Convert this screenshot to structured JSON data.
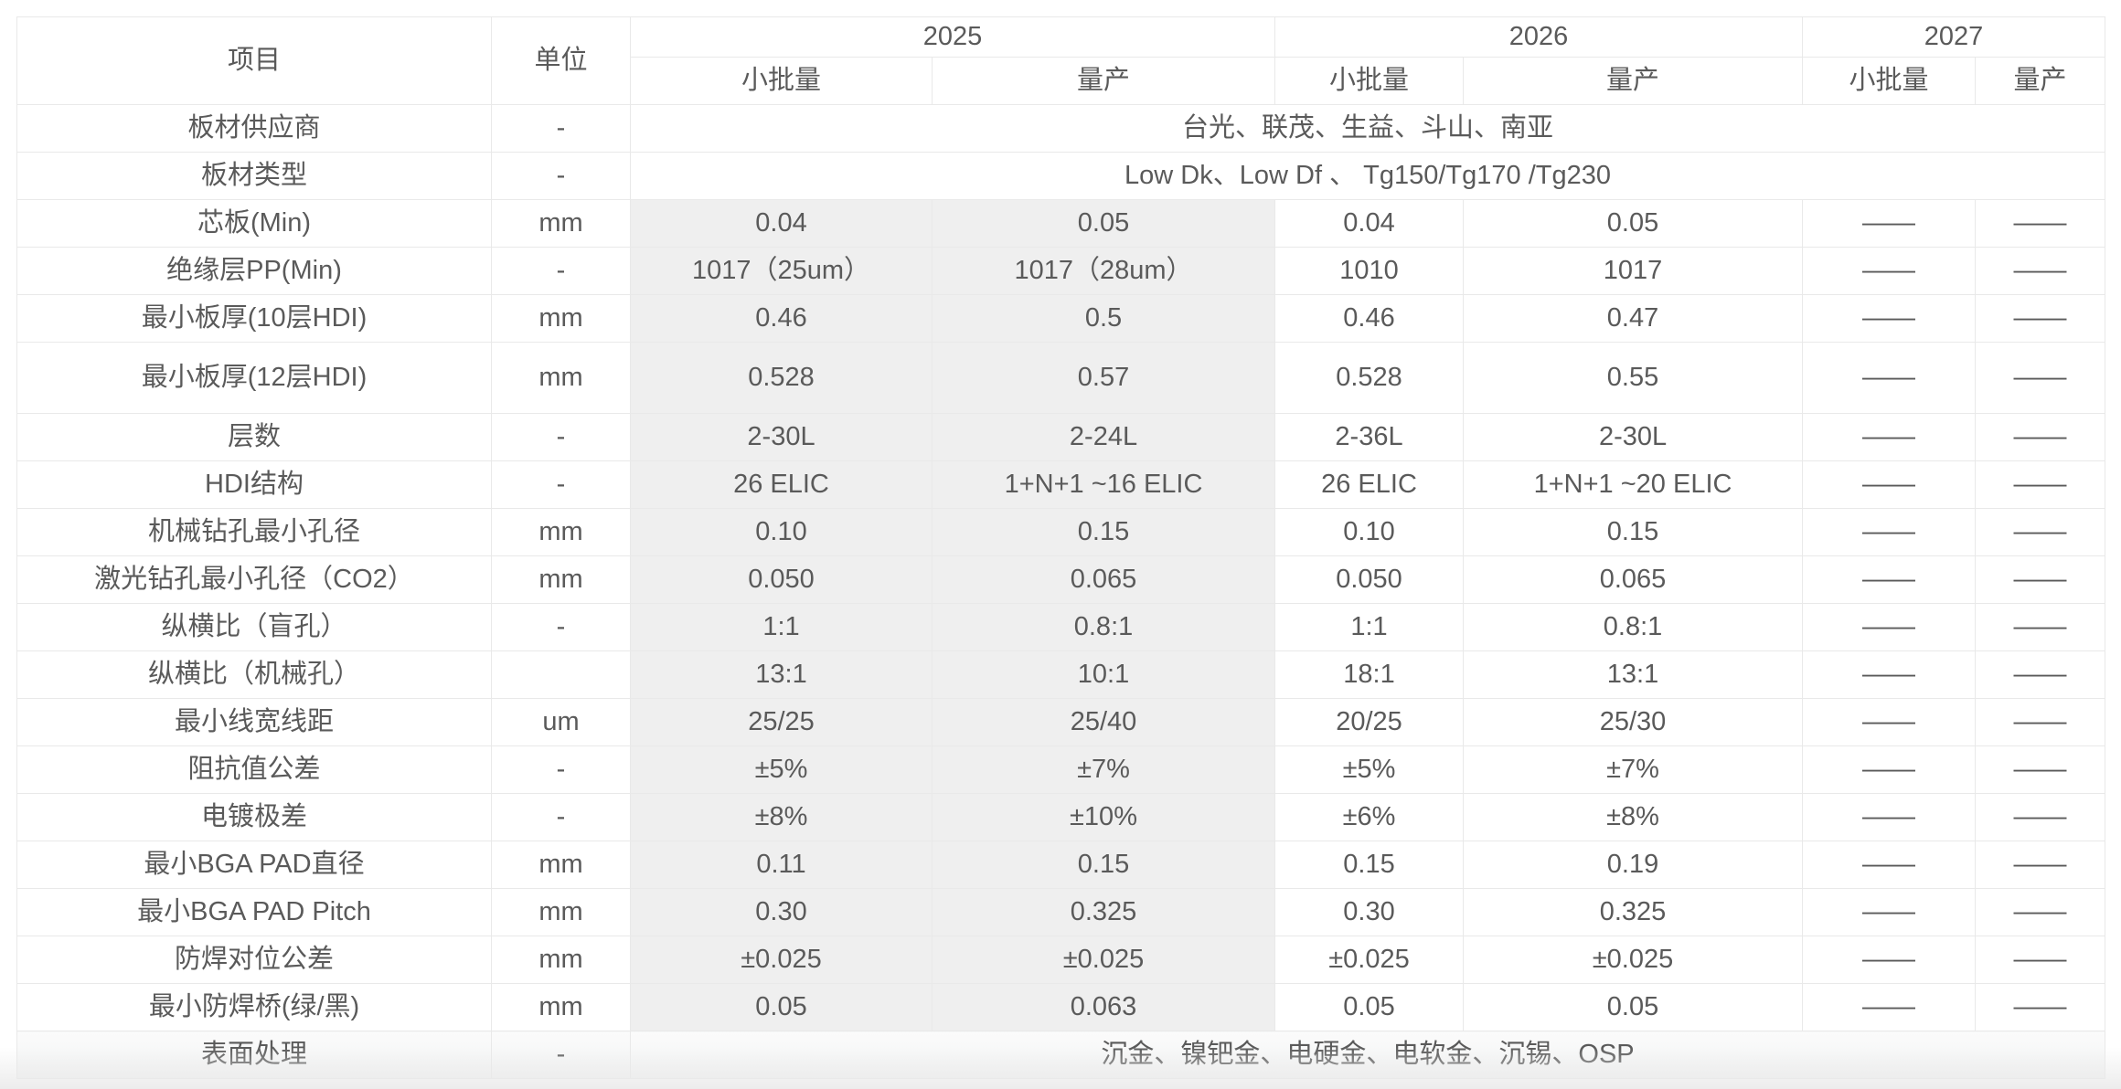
{
  "table": {
    "header": {
      "item": "项目",
      "unit": "单位",
      "years": [
        "2025",
        "2026",
        "2027"
      ],
      "subcolumns": [
        "小批量",
        "量产",
        "小批量",
        "量产",
        "小批量",
        "量产"
      ]
    },
    "rows": [
      {
        "label": "板材供应商",
        "unit": "-",
        "span": "台光、联茂、生益、斗山、南亚"
      },
      {
        "label": "板材类型",
        "unit": "-",
        "span": "Low Dk、Low Df 、 Tg150/Tg170 /Tg230"
      },
      {
        "label": "芯板(Min)",
        "unit": "mm",
        "values": [
          "0.04",
          "0.05",
          "0.04",
          "0.05",
          "——",
          "——"
        ]
      },
      {
        "label": "绝缘层PP(Min)",
        "unit": "-",
        "values": [
          "1017（25um）",
          "1017（28um）",
          "1010",
          "1017",
          "——",
          "——"
        ]
      },
      {
        "label": "最小板厚(10层HDI)",
        "unit": "mm",
        "values": [
          "0.46",
          "0.5",
          "0.46",
          "0.47",
          "——",
          "——"
        ]
      },
      {
        "label": "最小板厚(12层HDI)",
        "unit": "mm",
        "tall": true,
        "values": [
          "0.528",
          "0.57",
          "0.528",
          "0.55",
          "——",
          "——"
        ]
      },
      {
        "label": "层数",
        "unit": "-",
        "values": [
          "2-30L",
          "2-24L",
          "2-36L",
          "2-30L",
          "——",
          "——"
        ]
      },
      {
        "label": "HDI结构",
        "unit": "-",
        "values": [
          "26 ELIC",
          "1+N+1 ~16 ELIC",
          "26 ELIC",
          "1+N+1 ~20 ELIC",
          "——",
          "——"
        ]
      },
      {
        "label": "机械钻孔最小孔径",
        "unit": "mm",
        "values": [
          "0.10",
          "0.15",
          "0.10",
          "0.15",
          "——",
          "——"
        ]
      },
      {
        "label": "激光钻孔最小孔径（CO2）",
        "unit": "mm",
        "values": [
          "0.050",
          "0.065",
          "0.050",
          "0.065",
          "——",
          "——"
        ]
      },
      {
        "label": "纵横比（盲孔）",
        "unit": "-",
        "values": [
          "1:1",
          "0.8:1",
          "1:1",
          "0.8:1",
          "——",
          "——"
        ]
      },
      {
        "label": "纵横比（机械孔）",
        "unit": "",
        "values": [
          "13:1",
          "10:1",
          "18:1",
          "13:1",
          "——",
          "——"
        ]
      },
      {
        "label": "最小线宽线距",
        "unit": "um",
        "values": [
          "25/25",
          "25/40",
          "20/25",
          "25/30",
          "——",
          "——"
        ]
      },
      {
        "label": "阻抗值公差",
        "unit": "-",
        "values": [
          "±5%",
          "±7%",
          "±5%",
          "±7%",
          "——",
          "——"
        ]
      },
      {
        "label": "电镀极差",
        "unit": "-",
        "values": [
          "±8%",
          "±10%",
          "±6%",
          "±8%",
          "——",
          "——"
        ]
      },
      {
        "label": "最小BGA PAD直径",
        "unit": "mm",
        "values": [
          "0.11",
          "0.15",
          "0.15",
          "0.19",
          "——",
          "——"
        ]
      },
      {
        "label": "最小BGA PAD Pitch",
        "unit": "mm",
        "values": [
          "0.30",
          "0.325",
          "0.30",
          "0.325",
          "——",
          "——"
        ]
      },
      {
        "label": "防焊对位公差",
        "unit": "mm",
        "values": [
          "±0.025",
          "±0.025",
          "±0.025",
          "±0.025",
          "——",
          "——"
        ]
      },
      {
        "label": "最小防焊桥(绿/黑)",
        "unit": "mm",
        "values": [
          "0.05",
          "0.063",
          "0.05",
          "0.05",
          "——",
          "——"
        ]
      },
      {
        "label": "表面处理",
        "unit": "-",
        "last": true,
        "span": "沉金、镍钯金、电硬金、电软金、沉锡、OSP"
      }
    ],
    "colors": {
      "highlight_bg": "#efefef",
      "border": "#e9e9e9",
      "text": "#5a5a5a"
    }
  }
}
